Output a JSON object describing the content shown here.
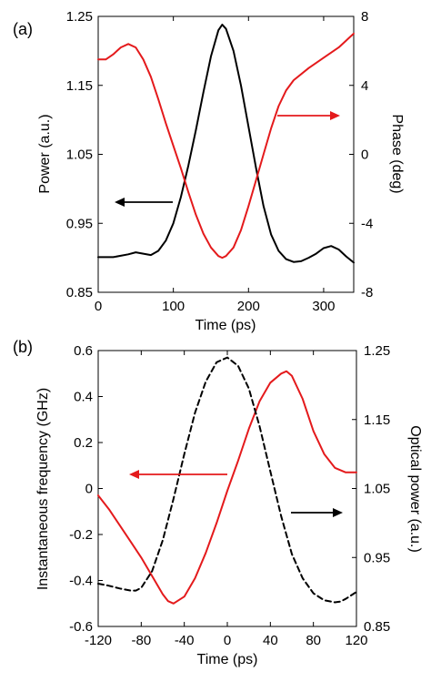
{
  "chart_data": [
    {
      "type": "line",
      "panel_label": "(a)",
      "xlabel": "Time (ps)",
      "ylabel_left": "Power (a.u.)",
      "ylabel_right": "Phase (deg)",
      "xlim": [
        0,
        340
      ],
      "ylim_left": [
        0.85,
        1.25
      ],
      "ylim_right": [
        -8,
        8
      ],
      "xticks": [
        0,
        100,
        200,
        300
      ],
      "yticks_left": [
        0.85,
        0.95,
        1.05,
        1.15,
        1.25
      ],
      "yticks_right": [
        -8,
        -4,
        0,
        4,
        8
      ],
      "grid": false,
      "legend": "none",
      "series": [
        {
          "axis": "left",
          "color": "#000000",
          "dash": "solid",
          "x": [
            0,
            20,
            40,
            50,
            60,
            70,
            80,
            90,
            100,
            110,
            120,
            130,
            140,
            150,
            160,
            165,
            170,
            180,
            190,
            200,
            210,
            220,
            230,
            240,
            250,
            260,
            270,
            280,
            290,
            300,
            310,
            320,
            330,
            340
          ],
          "y": [
            0.901,
            0.901,
            0.905,
            0.908,
            0.906,
            0.904,
            0.91,
            0.925,
            0.95,
            0.988,
            1.034,
            1.085,
            1.14,
            1.192,
            1.23,
            1.238,
            1.232,
            1.2,
            1.15,
            1.09,
            1.03,
            0.975,
            0.934,
            0.91,
            0.898,
            0.894,
            0.895,
            0.9,
            0.906,
            0.914,
            0.917,
            0.912,
            0.902,
            0.893
          ]
        },
        {
          "axis": "right",
          "color": "#e41a1c",
          "dash": "solid",
          "x": [
            0,
            10,
            20,
            30,
            40,
            50,
            60,
            70,
            80,
            90,
            100,
            110,
            120,
            130,
            140,
            150,
            160,
            165,
            170,
            180,
            190,
            200,
            210,
            220,
            230,
            240,
            250,
            260,
            280,
            300,
            320,
            340
          ],
          "y": [
            5.5,
            5.5,
            5.8,
            6.2,
            6.4,
            6.2,
            5.5,
            4.5,
            3.2,
            1.8,
            0.5,
            -0.8,
            -2.2,
            -3.5,
            -4.6,
            -5.4,
            -5.9,
            -6.0,
            -5.9,
            -5.4,
            -4.4,
            -3.0,
            -1.5,
            0.0,
            1.5,
            2.8,
            3.7,
            4.3,
            5.0,
            5.6,
            6.2,
            7.0
          ]
        }
      ],
      "annotations": [
        {
          "type": "arrow",
          "direction": "left",
          "color": "#000000",
          "points_to": "left-axis"
        },
        {
          "type": "arrow",
          "direction": "right",
          "color": "#e41a1c",
          "points_to": "right-axis"
        }
      ]
    },
    {
      "type": "line",
      "panel_label": "(b)",
      "xlabel": "Time (ps)",
      "ylabel_left": "Instantaneous frequency (GHz)",
      "ylabel_right": "Optical power (a.u.)",
      "xlim": [
        -120,
        120
      ],
      "ylim_left": [
        -0.6,
        0.6
      ],
      "ylim_right": [
        0.85,
        1.25
      ],
      "xticks": [
        -120,
        -80,
        -40,
        0,
        40,
        80,
        120
      ],
      "yticks_left": [
        -0.6,
        -0.4,
        -0.2,
        0,
        0.2,
        0.4,
        0.6
      ],
      "yticks_right": [
        0.85,
        0.95,
        1.05,
        1.15,
        1.25
      ],
      "grid": false,
      "legend": "none",
      "series": [
        {
          "axis": "left",
          "color": "#e41a1c",
          "dash": "solid",
          "x": [
            -120,
            -110,
            -100,
            -90,
            -80,
            -70,
            -60,
            -55,
            -50,
            -40,
            -30,
            -20,
            -10,
            0,
            10,
            20,
            30,
            40,
            50,
            55,
            60,
            70,
            80,
            90,
            100,
            110,
            120
          ],
          "y": [
            -0.03,
            -0.09,
            -0.16,
            -0.23,
            -0.3,
            -0.38,
            -0.46,
            -0.49,
            -0.5,
            -0.47,
            -0.39,
            -0.28,
            -0.15,
            -0.01,
            0.12,
            0.26,
            0.38,
            0.46,
            0.5,
            0.51,
            0.49,
            0.39,
            0.25,
            0.15,
            0.09,
            0.07,
            0.07
          ]
        },
        {
          "axis": "right",
          "color": "#000000",
          "dash": "dashed",
          "x": [
            -120,
            -110,
            -100,
            -90,
            -85,
            -80,
            -70,
            -60,
            -50,
            -40,
            -30,
            -20,
            -10,
            0,
            10,
            20,
            30,
            40,
            50,
            60,
            70,
            80,
            90,
            100,
            105,
            110,
            120
          ],
          "y": [
            0.912,
            0.909,
            0.905,
            0.902,
            0.902,
            0.906,
            0.93,
            0.975,
            1.035,
            1.1,
            1.16,
            1.205,
            1.233,
            1.24,
            1.228,
            1.195,
            1.14,
            1.075,
            1.01,
            0.955,
            0.92,
            0.898,
            0.888,
            0.885,
            0.886,
            0.89,
            0.9
          ]
        }
      ],
      "annotations": [
        {
          "type": "arrow",
          "direction": "left",
          "color": "#e41a1c",
          "points_to": "left-axis"
        },
        {
          "type": "arrow",
          "direction": "right",
          "color": "#000000",
          "points_to": "right-axis"
        }
      ]
    }
  ]
}
